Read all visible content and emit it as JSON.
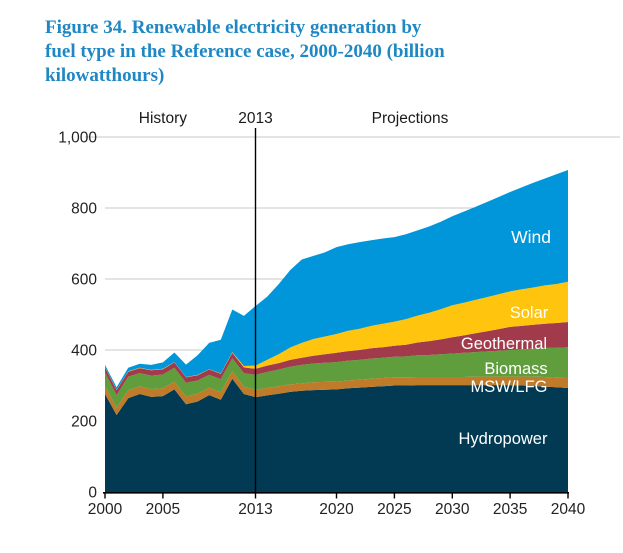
{
  "title": "Figure 34. Renewable electricity generation by fuel type in the Reference case, 2000-2040 (billion kilowatthours)",
  "title_lines": [
    "Figure 34. Renewable electricity generation by",
    "fuel type in the Reference case, 2000-2040 (billion",
    "kilowatthours)"
  ],
  "colors": {
    "title": "#1F88C4",
    "grid": "#C9C9C9",
    "axis": "#000000",
    "tick_label": "#222222",
    "header_label": "#1A1A1A",
    "divider_line": "#000000",
    "plot_label": "#FFFFFF",
    "background": "#FFFFFF"
  },
  "chart_data": {
    "type": "area",
    "stacked": true,
    "title": "Renewable electricity generation by fuel type in the Reference case, 2000-2040",
    "units": "billion kilowatthours",
    "xlabel": "",
    "ylabel": "",
    "xlim": [
      2000,
      2040
    ],
    "ylim": [
      0,
      1000
    ],
    "grid": true,
    "legend_position": "labels-inside-plot",
    "x_ticks": [
      2000,
      2005,
      2013,
      2020,
      2025,
      2030,
      2035,
      2040
    ],
    "x_tick_labels": [
      "2000",
      "2005",
      "2013",
      "2020",
      "2025",
      "2030",
      "2035",
      "2040"
    ],
    "y_ticks": [
      0,
      200,
      400,
      600,
      800,
      1000
    ],
    "y_tick_labels": [
      "0",
      "200",
      "400",
      "600",
      "800",
      "1,000"
    ],
    "annotations": {
      "history_label": "History",
      "divider_label": "2013",
      "divider_year": 2013,
      "projections_label": "Projections"
    },
    "x": [
      2000,
      2001,
      2002,
      2003,
      2004,
      2005,
      2006,
      2007,
      2008,
      2009,
      2010,
      2011,
      2012,
      2013,
      2014,
      2015,
      2016,
      2017,
      2018,
      2019,
      2020,
      2021,
      2022,
      2023,
      2024,
      2025,
      2026,
      2027,
      2028,
      2029,
      2030,
      2031,
      2032,
      2033,
      2034,
      2035,
      2036,
      2037,
      2038,
      2039,
      2040
    ],
    "series": [
      {
        "name": "Hydropower",
        "color": "#013A52",
        "values": [
          276,
          217,
          264,
          276,
          268,
          270,
          289,
          247,
          255,
          273,
          260,
          319,
          276,
          267,
          272,
          277,
          282,
          285,
          287,
          288,
          289,
          292,
          294,
          296,
          298,
          300,
          300,
          301,
          301,
          301,
          301,
          301,
          301,
          301,
          301,
          301,
          300,
          299,
          297,
          295,
          293
        ]
      },
      {
        "name": "MSW/LFG",
        "color": "#BF7B2A",
        "values": [
          23,
          21,
          22,
          22,
          22,
          22,
          22,
          22,
          22,
          21,
          21,
          21,
          21,
          20,
          21,
          21,
          21,
          21,
          22,
          22,
          22,
          22,
          22,
          23,
          23,
          23,
          23,
          23,
          23,
          23,
          23,
          23,
          24,
          24,
          24,
          24,
          25,
          26,
          27,
          27,
          28
        ]
      },
      {
        "name": "Biomass",
        "color": "#609D3D",
        "values": [
          38,
          35,
          39,
          37,
          38,
          39,
          39,
          39,
          37,
          36,
          37,
          37,
          38,
          43,
          45,
          47,
          50,
          52,
          53,
          54,
          55,
          56,
          56,
          57,
          57,
          58,
          59,
          61,
          62,
          64,
          66,
          68,
          69,
          71,
          73,
          75,
          77,
          79,
          82,
          84,
          87
        ]
      },
      {
        "name": "Geothermal",
        "color": "#A13B4B",
        "values": [
          14,
          14,
          14,
          14,
          15,
          15,
          15,
          15,
          15,
          15,
          15,
          15,
          16,
          17,
          18,
          18,
          19,
          20,
          22,
          24,
          26,
          27,
          28,
          29,
          30,
          31,
          33,
          36,
          39,
          42,
          46,
          49,
          53,
          57,
          61,
          65,
          66,
          67,
          68,
          70,
          71
        ]
      },
      {
        "name": "Solar",
        "color": "#FFC40D",
        "values": [
          1,
          1,
          1,
          1,
          1,
          1,
          1,
          1,
          1,
          1,
          1,
          2,
          4,
          9,
          16,
          25,
          35,
          42,
          47,
          50,
          53,
          57,
          60,
          63,
          66,
          68,
          72,
          76,
          80,
          85,
          90,
          92,
          94,
          96,
          98,
          100,
          103,
          105,
          108,
          110,
          113
        ]
      },
      {
        "name": "Wind",
        "color": "#0096D9",
        "values": [
          6,
          7,
          10,
          11,
          14,
          18,
          27,
          35,
          55,
          74,
          95,
          120,
          141,
          168,
          178,
          197,
          218,
          235,
          234,
          237,
          245,
          244,
          244,
          241,
          240,
          238,
          239,
          240,
          243,
          246,
          251,
          257,
          262,
          268,
          274,
          280,
          287,
          295,
          301,
          309,
          315
        ]
      }
    ]
  }
}
